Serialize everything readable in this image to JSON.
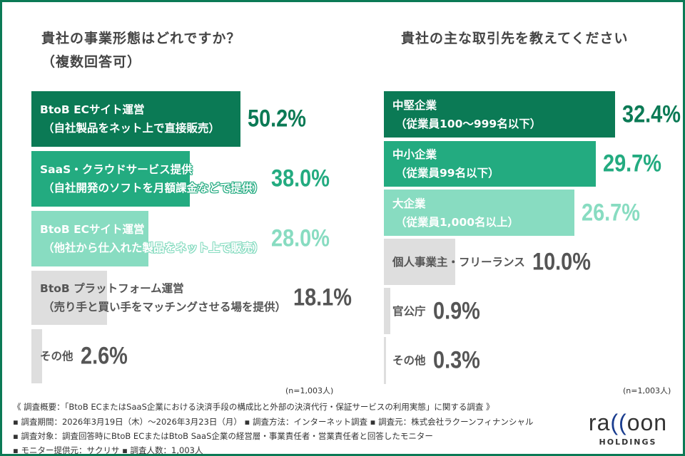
{
  "colors": {
    "dark": "#0b7a55",
    "mid": "#23ab80",
    "light": "#88dcc1",
    "gray": "#dedede",
    "grayText": "#555555"
  },
  "left": {
    "title_line1": "貴社の事業形態はどれですか？",
    "title_line2": "（複数回答可）",
    "n_label": "(n=1,003人)"
  },
  "right": {
    "title": "貴社の主な取引先を教えてください",
    "n_label": "(n=1,003人)"
  },
  "chart_data": [
    {
      "type": "bar",
      "orientation": "horizontal",
      "title": "貴社の事業形態はどれですか？（複数回答可）",
      "unit": "%",
      "categories": [
        [
          "BtoB ECサイト運営",
          "（自社製品をネット上で直接販売）"
        ],
        [
          "SaaS・クラウドサービス提供",
          "（自社開発のソフトを月額課金などで提供）"
        ],
        [
          "BtoB ECサイト運営",
          "（他社から仕入れた製品をネット上で販売）"
        ],
        [
          "BtoB プラットフォーム運営",
          "（売り手と買い手をマッチングさせる場を提供）"
        ],
        [
          "その他"
        ]
      ],
      "values": [
        50.2,
        38.0,
        28.0,
        18.1,
        2.6
      ],
      "value_labels": [
        "50.2%",
        "38.0%",
        "28.0%",
        "18.1%",
        "2.6%"
      ],
      "styles": [
        "dark",
        "mid",
        "light",
        "gray",
        "gray"
      ],
      "xlim": [
        0,
        60
      ]
    },
    {
      "type": "bar",
      "orientation": "horizontal",
      "title": "貴社の主な取引先を教えてください",
      "unit": "%",
      "categories": [
        [
          "中堅企業",
          "（従業員100〜999名以下）"
        ],
        [
          "中小企業",
          "（従業員99名以下）"
        ],
        [
          "大企業",
          "（従業員1,000名以上）"
        ],
        [
          "個人事業主・フリーランス"
        ],
        [
          "官公庁"
        ],
        [
          "その他"
        ]
      ],
      "values": [
        32.4,
        29.7,
        26.7,
        10.0,
        0.9,
        0.3
      ],
      "value_labels": [
        "32.4%",
        "29.7%",
        "26.7%",
        "10.0%",
        "0.9%",
        "0.3%"
      ],
      "styles": [
        "dark",
        "mid",
        "light",
        "gray",
        "gray",
        "gray"
      ],
      "xlim": [
        0,
        40
      ]
    }
  ],
  "footer": {
    "line1": "《 調査概要：「BtoB ECまたはSaaS企業における決済手段の構成比と外部の決済代行・保証サービスの利用実態」に関する調査 》",
    "line2": "▪ 調査期間：2026年3月19日（木）〜2026年3月23日（月）  ▪ 調査方法：インターネット調査    ▪ 調査元：株式会社ラクーンフィナンシャル",
    "line3": "▪ 調査対象：調査回答時にBtoB ECまたはBtoB SaaS企業の経営層・事業責任者・営業責任者と回答したモニター",
    "line4": "▪ モニター提供元：サクリサ      ▪ 調査人数：1,003人"
  },
  "logo": {
    "text": "raccoon",
    "sub": "HOLDINGS"
  }
}
